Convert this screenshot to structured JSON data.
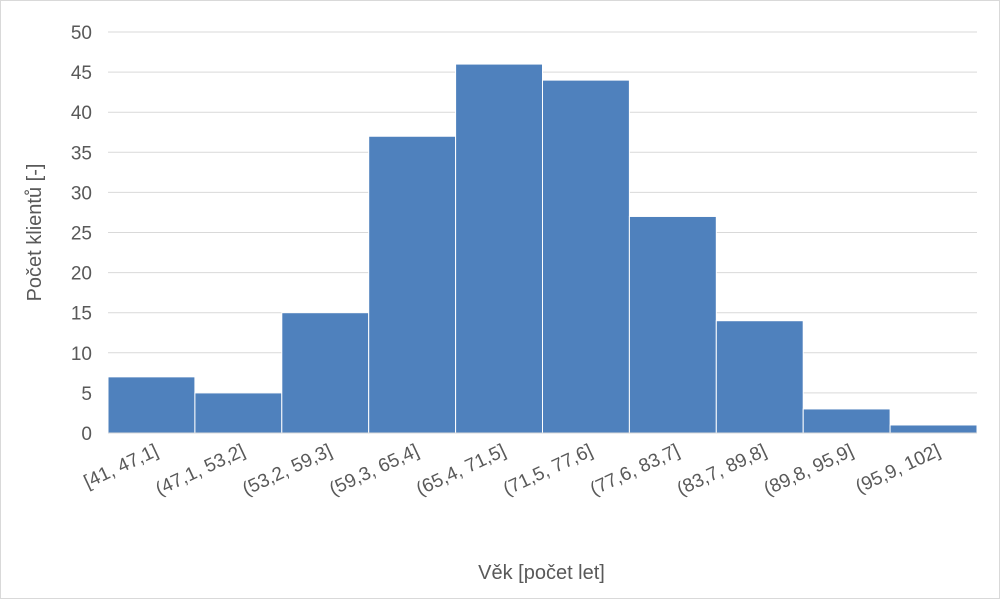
{
  "chart_data": {
    "type": "bar",
    "categories": [
      "[41, 47,1]",
      "(47,1, 53,2]",
      "(53,2, 59,3]",
      "(59,3, 65,4]",
      "(65,4, 71,5]",
      "(71,5, 77,6]",
      "(77,6, 83,7]",
      "(83,7, 89,8]",
      "(89,8, 95,9]",
      "(95,9, 102]"
    ],
    "values": [
      7,
      5,
      15,
      37,
      46,
      44,
      27,
      14,
      3,
      1
    ],
    "xlabel": "Věk [počet let]",
    "ylabel": "Počet klientů [-]",
    "ylim": [
      0,
      50
    ],
    "yticks": [
      0,
      5,
      10,
      15,
      20,
      25,
      30,
      35,
      40,
      45,
      50
    ],
    "grid": true,
    "legend": "none",
    "bar_color": "#4f81bd",
    "grid_color": "#d9d9d9"
  }
}
